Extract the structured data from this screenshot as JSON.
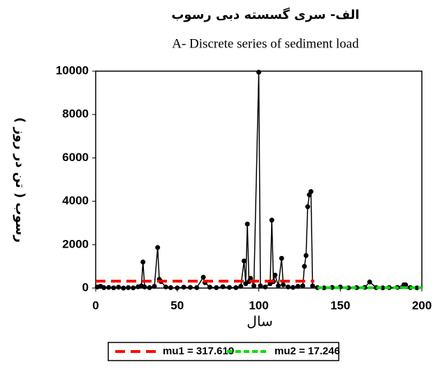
{
  "chart_data": {
    "type": "line",
    "title": "الف- سری گسسته دبی رسوب",
    "subtitle": "A- Discrete series of sediment load",
    "x_label": "سال",
    "y_label": "رسوب ( تن در روز )",
    "xlim": [
      0,
      200
    ],
    "xticks": [
      0,
      50,
      100,
      150,
      200
    ],
    "ylim": [
      0,
      10000
    ],
    "yticks": [
      0,
      2000,
      4000,
      6000,
      8000,
      10000
    ],
    "color": "#000000",
    "x": [
      1,
      3,
      5,
      8,
      11,
      14,
      17,
      20,
      23,
      26,
      28,
      29,
      30,
      33,
      36,
      38,
      39,
      40,
      43,
      46,
      50,
      54,
      58,
      62,
      66,
      67,
      70,
      74,
      78,
      82,
      86,
      89,
      91,
      92,
      93,
      94,
      95,
      97,
      100,
      101,
      104,
      107,
      108,
      109,
      110,
      112,
      114,
      115,
      118,
      121,
      124,
      127,
      128,
      129,
      130,
      131,
      132,
      133,
      136,
      140,
      145,
      150,
      155,
      160,
      165,
      168,
      172,
      176,
      180,
      185,
      189,
      190,
      193,
      197
    ],
    "values": [
      50,
      80,
      20,
      30,
      10,
      40,
      0,
      20,
      10,
      60,
      100,
      1200,
      50,
      20,
      80,
      1870,
      400,
      300,
      50,
      20,
      10,
      40,
      30,
      20,
      500,
      250,
      40,
      20,
      60,
      30,
      20,
      80,
      1250,
      200,
      2950,
      300,
      450,
      100,
      9950,
      100,
      50,
      200,
      3130,
      300,
      600,
      100,
      1370,
      150,
      50,
      30,
      80,
      100,
      1000,
      1500,
      3750,
      4300,
      4450,
      100,
      20,
      10,
      30,
      50,
      10,
      20,
      30,
      280,
      20,
      10,
      20,
      30,
      150,
      150,
      20,
      10
    ],
    "segments": [
      {
        "name": "mu1 = 317.619",
        "value": 317.619,
        "x": [
          0,
          134
        ],
        "color": "#ff0000"
      },
      {
        "name": "mu2 = 17.246",
        "value": 17.246,
        "x": [
          136,
          200
        ],
        "color": "#00e000"
      }
    ]
  }
}
